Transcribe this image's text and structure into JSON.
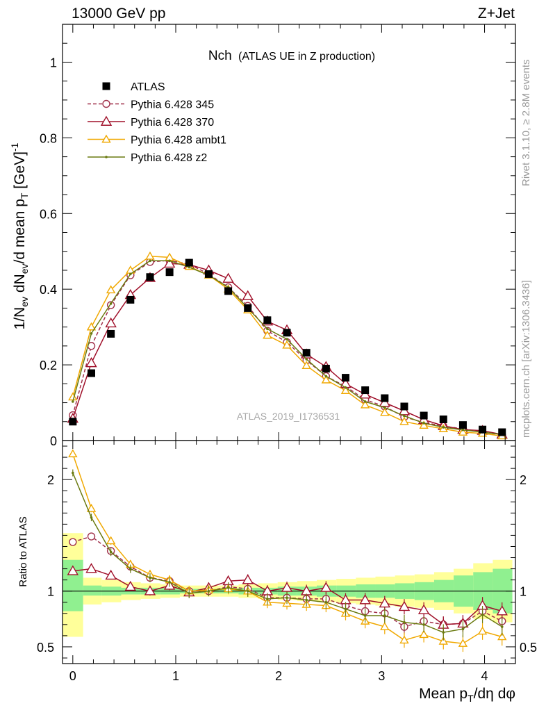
{
  "header": {
    "left": "13000 GeV pp",
    "right": "Z+Jet"
  },
  "plot_title": {
    "main": "Nch",
    "sub": "(ATLAS UE in Z production)"
  },
  "watermark": "ATLAS_2019_I1736531",
  "side_text": {
    "top": "Rivet 3.1.10, ≥ 2.8M events",
    "bottom": "mcplots.cern.ch [arXiv:1306.3436]"
  },
  "colors": {
    "atlas": "#000000",
    "p345": "#a0304a",
    "p370": "#a0102a",
    "ambt1": "#f0a800",
    "z2": "#6a7a10",
    "band_outer": "#ffff9a",
    "band_inner": "#90f090"
  },
  "chart_data": [
    {
      "type": "line",
      "ylabel": "1/N_ev dN_ev/d mean p_T [GeV]^-1",
      "xlim": [
        -0.1,
        4.3
      ],
      "ylim": [
        0,
        1.1
      ],
      "y_ticks": [
        "0",
        "0.2",
        "0.4",
        "0.6",
        "0.8",
        "1"
      ],
      "x": [
        0.0,
        0.18,
        0.37,
        0.56,
        0.75,
        0.94,
        1.13,
        1.32,
        1.51,
        1.7,
        1.89,
        2.08,
        2.27,
        2.46,
        2.65,
        2.84,
        3.03,
        3.22,
        3.41,
        3.6,
        3.79,
        3.98,
        4.17
      ],
      "legend": [
        "ATLAS",
        "Pythia 6.428 345",
        "Pythia 6.428 370",
        "Pythia 6.428 ambt1",
        "Pythia 6.428 z2"
      ],
      "series": [
        {
          "name": "ATLAS",
          "marker": "square",
          "values": [
            0.05,
            0.178,
            0.282,
            0.372,
            0.432,
            0.445,
            0.47,
            0.44,
            0.395,
            0.35,
            0.318,
            0.285,
            0.232,
            0.19,
            0.166,
            0.133,
            0.112,
            0.09,
            0.066,
            0.056,
            0.041,
            0.029,
            0.022
          ]
        },
        {
          "name": "Pythia 6.428 345",
          "marker": "circle",
          "dashed": true,
          "values": [
            0.067,
            0.25,
            0.358,
            0.437,
            0.472,
            0.476,
            0.466,
            0.44,
            0.405,
            0.356,
            0.29,
            0.26,
            0.212,
            0.17,
            0.143,
            0.108,
            0.09,
            0.062,
            0.048,
            0.038,
            0.031,
            0.022,
            0.015
          ]
        },
        {
          "name": "Pythia 6.428 370",
          "marker": "triangle",
          "values": [
            0.058,
            0.205,
            0.31,
            0.385,
            0.43,
            0.468,
            0.465,
            0.45,
            0.428,
            0.382,
            0.315,
            0.292,
            0.228,
            0.195,
            0.15,
            0.122,
            0.1,
            0.078,
            0.055,
            0.039,
            0.029,
            0.026,
            0.016
          ]
        },
        {
          "name": "Pythia 6.428 ambt1",
          "marker": "triangle",
          "values": [
            0.115,
            0.3,
            0.398,
            0.45,
            0.487,
            0.484,
            0.46,
            0.437,
            0.4,
            0.345,
            0.278,
            0.252,
            0.198,
            0.16,
            0.132,
            0.094,
            0.074,
            0.05,
            0.04,
            0.031,
            0.022,
            0.019,
            0.012
          ]
        },
        {
          "name": "Pythia 6.428 z2",
          "marker": "dot",
          "values": [
            0.103,
            0.283,
            0.362,
            0.44,
            0.475,
            0.475,
            0.458,
            0.437,
            0.405,
            0.35,
            0.295,
            0.268,
            0.215,
            0.17,
            0.14,
            0.103,
            0.087,
            0.065,
            0.046,
            0.035,
            0.028,
            0.022,
            0.016
          ]
        }
      ]
    },
    {
      "type": "line",
      "ylabel": "Ratio to ATLAS",
      "xlabel": "Mean p_T/dη dφ",
      "xlim": [
        -0.1,
        4.3
      ],
      "ylim": [
        0.35,
        2.35
      ],
      "y_ticks": [
        "0.5",
        "1",
        "2"
      ],
      "x_ticks": [
        "0",
        "1",
        "2",
        "3",
        "4"
      ],
      "reference_line": 1,
      "x": [
        0.0,
        0.18,
        0.37,
        0.56,
        0.75,
        0.94,
        1.13,
        1.32,
        1.51,
        1.7,
        1.89,
        2.08,
        2.27,
        2.46,
        2.65,
        2.84,
        3.03,
        3.22,
        3.41,
        3.6,
        3.79,
        3.98,
        4.17
      ],
      "band_bins": [
        -0.1,
        0.1,
        0.28,
        0.47,
        0.66,
        0.85,
        1.04,
        1.23,
        1.42,
        1.61,
        1.8,
        1.99,
        2.18,
        2.37,
        2.56,
        2.75,
        2.94,
        3.13,
        3.32,
        3.51,
        3.7,
        3.89,
        4.08,
        4.27
      ],
      "band_outer": [
        [
          0.59,
          1.52
        ],
        [
          0.88,
          1.12
        ],
        [
          0.9,
          1.1
        ],
        [
          0.92,
          1.08
        ],
        [
          0.93,
          1.07
        ],
        [
          0.94,
          1.06
        ],
        [
          0.95,
          1.05
        ],
        [
          0.95,
          1.05
        ],
        [
          0.95,
          1.05
        ],
        [
          0.94,
          1.06
        ],
        [
          0.93,
          1.07
        ],
        [
          0.92,
          1.08
        ],
        [
          0.91,
          1.09
        ],
        [
          0.9,
          1.1
        ],
        [
          0.89,
          1.11
        ],
        [
          0.88,
          1.12
        ],
        [
          0.87,
          1.13
        ],
        [
          0.86,
          1.14
        ],
        [
          0.85,
          1.15
        ],
        [
          0.83,
          1.17
        ],
        [
          0.8,
          1.2
        ],
        [
          0.75,
          1.25
        ],
        [
          0.72,
          1.28
        ]
      ],
      "band_inner": [
        [
          0.82,
          1.28
        ],
        [
          0.96,
          1.05
        ],
        [
          0.96,
          1.04
        ],
        [
          0.97,
          1.03
        ],
        [
          0.97,
          1.03
        ],
        [
          0.97,
          1.03
        ],
        [
          0.98,
          1.02
        ],
        [
          0.98,
          1.02
        ],
        [
          0.98,
          1.02
        ],
        [
          0.97,
          1.03
        ],
        [
          0.97,
          1.03
        ],
        [
          0.96,
          1.04
        ],
        [
          0.96,
          1.04
        ],
        [
          0.95,
          1.05
        ],
        [
          0.95,
          1.05
        ],
        [
          0.94,
          1.06
        ],
        [
          0.94,
          1.06
        ],
        [
          0.93,
          1.07
        ],
        [
          0.92,
          1.08
        ],
        [
          0.9,
          1.1
        ],
        [
          0.86,
          1.14
        ],
        [
          0.83,
          1.17
        ],
        [
          0.8,
          1.2
        ]
      ],
      "series": [
        {
          "name": "Pythia 6.428 345",
          "values": [
            1.44,
            1.49,
            1.36,
            1.22,
            1.12,
            1.09,
            1.0,
            1.0,
            1.04,
            1.02,
            0.94,
            0.94,
            0.93,
            0.93,
            0.87,
            0.82,
            0.8,
            0.68,
            0.73,
            0.7,
            0.71,
            0.82,
            0.73
          ]
        },
        {
          "name": "Pythia 6.428 370",
          "values": [
            1.18,
            1.2,
            1.14,
            1.04,
            1.0,
            1.05,
            0.99,
            1.03,
            1.09,
            1.1,
            1.0,
            1.03,
            1.0,
            1.03,
            0.92,
            0.92,
            0.89,
            0.86,
            0.83,
            0.7,
            0.71,
            0.87,
            0.82
          ]
        },
        {
          "name": "Pythia 6.428 ambt1",
          "values": [
            2.23,
            1.74,
            1.45,
            1.24,
            1.15,
            1.1,
            1.0,
            1.01,
            1.02,
            1.0,
            0.9,
            0.89,
            0.88,
            0.87,
            0.8,
            0.73,
            0.68,
            0.56,
            0.61,
            0.55,
            0.53,
            0.64,
            0.59
          ]
        },
        {
          "name": "Pythia 6.428 z2",
          "values": [
            2.06,
            1.66,
            1.35,
            1.2,
            1.12,
            1.08,
            0.98,
            1.0,
            1.03,
            1.0,
            0.93,
            0.94,
            0.92,
            0.9,
            0.84,
            0.78,
            0.78,
            0.72,
            0.7,
            0.63,
            0.66,
            0.79,
            0.68
          ]
        }
      ]
    }
  ]
}
